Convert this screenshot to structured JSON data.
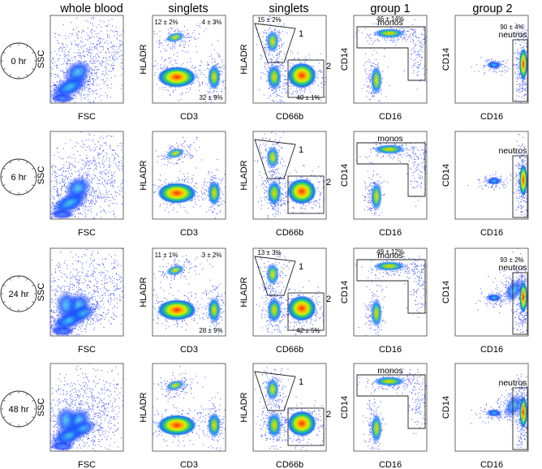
{
  "chart_data": {
    "type": "scatter",
    "column_headers": [
      "whole blood",
      "singlets",
      "singlets",
      "group 1",
      "group 2"
    ],
    "rows": [
      {
        "time": "0 hr",
        "stats": {
          "cd3_top_left": "12 ± 2%",
          "cd3_top_right": "4 ± 3%",
          "cd3_bottom_right": "32 ± 9%",
          "cd66b_gate1": "15 ± 2%",
          "cd66b_gate2": "40 ± 1%",
          "monos": "46 ± 14%",
          "neutros": "90 ± 4%"
        }
      },
      {
        "time": "6 hr",
        "stats": {}
      },
      {
        "time": "24 hr",
        "stats": {
          "cd3_top_left": "11 ± 1%",
          "cd3_top_right": "3 ± 2%",
          "cd3_bottom_right": "28 ± 9%",
          "cd66b_gate1": "13 ± 3%",
          "cd66b_gate2": "42 ± 5%",
          "monos": "49 ± 12%",
          "neutros": "93 ± 2%"
        }
      },
      {
        "time": "48 hr",
        "stats": {}
      }
    ],
    "panels": [
      {
        "xlabel": "FSC",
        "ylabel": "SSC"
      },
      {
        "xlabel": "CD3",
        "ylabel": "HLADR"
      },
      {
        "xlabel": "CD66b",
        "ylabel": "HLADR",
        "gate_labels": [
          "1",
          "2"
        ]
      },
      {
        "xlabel": "CD16",
        "ylabel": "CD14",
        "gate_label": "monos"
      },
      {
        "xlabel": "CD16",
        "ylabel": "CD14",
        "gate_label": "neutros"
      }
    ]
  }
}
